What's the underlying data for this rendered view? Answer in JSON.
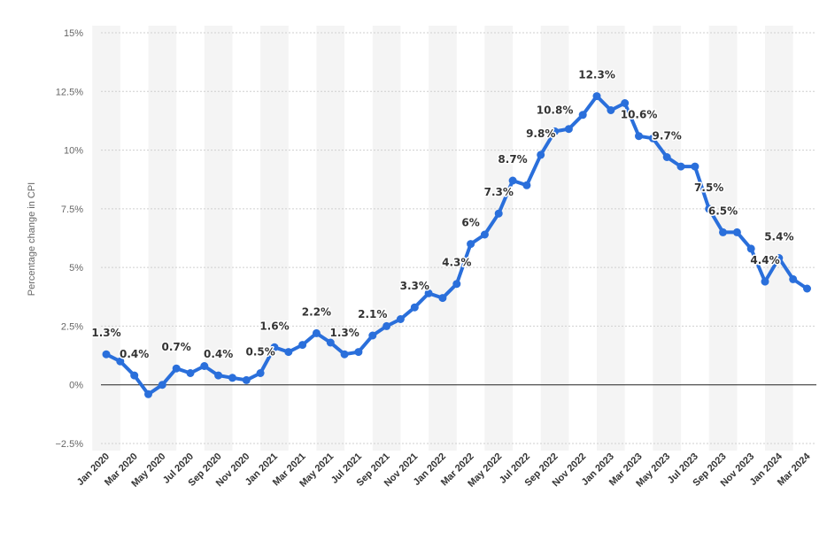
{
  "chart_data": {
    "type": "line",
    "ylabel": "Percentage change in CPI",
    "xlabel": "",
    "ylim": [
      -2.5,
      15
    ],
    "yticks": [
      {
        "value": 15,
        "label": "15%"
      },
      {
        "value": 12.5,
        "label": "12.5%"
      },
      {
        "value": 10,
        "label": "10%"
      },
      {
        "value": 7.5,
        "label": "7.5%"
      },
      {
        "value": 5,
        "label": "5%"
      },
      {
        "value": 2.5,
        "label": "2.5%"
      },
      {
        "value": 0,
        "label": "0%"
      },
      {
        "value": -2.5,
        "label": "−2.5%"
      }
    ],
    "x": [
      "Jan 2020",
      "Feb 2020",
      "Mar 2020",
      "Apr 2020",
      "May 2020",
      "Jun 2020",
      "Jul 2020",
      "Aug 2020",
      "Sep 2020",
      "Oct 2020",
      "Nov 2020",
      "Dec 2020",
      "Jan 2021",
      "Feb 2021",
      "Mar 2021",
      "Apr 2021",
      "May 2021",
      "Jun 2021",
      "Jul 2021",
      "Aug 2021",
      "Sep 2021",
      "Oct 2021",
      "Nov 2021",
      "Dec 2021",
      "Jan 2022",
      "Feb 2022",
      "Mar 2022",
      "Apr 2022",
      "May 2022",
      "Jun 2022",
      "Jul 2022",
      "Aug 2022",
      "Sep 2022",
      "Oct 2022",
      "Nov 2022",
      "Dec 2022",
      "Jan 2023",
      "Feb 2023",
      "Mar 2023",
      "Apr 2023",
      "May 2023",
      "Jun 2023",
      "Jul 2023",
      "Aug 2023",
      "Sep 2023",
      "Oct 2023",
      "Nov 2023",
      "Dec 2023",
      "Jan 2024",
      "Feb 2024",
      "Mar 2024"
    ],
    "xtick_labels": [
      "Jan 2020",
      "Mar 2020",
      "May 2020",
      "Jul 2020",
      "Sep 2020",
      "Nov 2020",
      "Jan 2021",
      "Mar 2021",
      "May 2021",
      "Jul 2021",
      "Sep 2021",
      "Nov 2021",
      "Jan 2022",
      "Mar 2022",
      "May 2022",
      "Jul 2022",
      "Sep 2022",
      "Nov 2022",
      "Jan 2023",
      "Mar 2023",
      "May 2023",
      "Jul 2023",
      "Sep 2023",
      "Nov 2023",
      "Jan 2024",
      "Mar 2024"
    ],
    "series": [
      {
        "values": [
          1.3,
          1.0,
          0.4,
          -0.4,
          0.0,
          0.7,
          0.5,
          0.8,
          0.4,
          0.3,
          0.2,
          0.5,
          1.6,
          1.4,
          1.7,
          2.2,
          1.8,
          1.3,
          1.4,
          2.1,
          2.5,
          2.8,
          3.3,
          3.9,
          3.7,
          4.3,
          6.0,
          6.4,
          7.3,
          8.7,
          8.5,
          9.8,
          10.8,
          10.9,
          11.5,
          12.3,
          11.7,
          12.0,
          10.6,
          10.5,
          9.7,
          9.3,
          9.3,
          7.5,
          6.5,
          6.5,
          5.8,
          4.4,
          5.4,
          4.5,
          4.1
        ]
      }
    ],
    "data_labels": [
      {
        "index": 0,
        "text": "1.3%"
      },
      {
        "index": 2,
        "text": "0.4%"
      },
      {
        "index": 5,
        "text": "0.7%"
      },
      {
        "index": 8,
        "text": "0.4%"
      },
      {
        "index": 11,
        "text": "0.5%"
      },
      {
        "index": 12,
        "text": "1.6%"
      },
      {
        "index": 15,
        "text": "2.2%"
      },
      {
        "index": 17,
        "text": "1.3%"
      },
      {
        "index": 19,
        "text": "2.1%"
      },
      {
        "index": 22,
        "text": "3.3%"
      },
      {
        "index": 25,
        "text": "4.3%"
      },
      {
        "index": 26,
        "text": "6%"
      },
      {
        "index": 28,
        "text": "7.3%"
      },
      {
        "index": 29,
        "text": "8.7%"
      },
      {
        "index": 31,
        "text": "9.8%"
      },
      {
        "index": 32,
        "text": "10.8%"
      },
      {
        "index": 35,
        "text": "12.3%"
      },
      {
        "index": 38,
        "text": "10.6%"
      },
      {
        "index": 40,
        "text": "9.7%"
      },
      {
        "index": 43,
        "text": "7.5%"
      },
      {
        "index": 44,
        "text": "6.5%"
      },
      {
        "index": 47,
        "text": "4.4%"
      },
      {
        "index": 48,
        "text": "5.4%"
      }
    ],
    "grid": true,
    "colors": {
      "line": "#2a6fdb",
      "band": "#f4f4f4",
      "grid": "#cfcfcf",
      "zero": "#222222"
    }
  }
}
